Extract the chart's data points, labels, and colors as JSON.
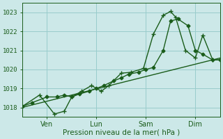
{
  "bg_color": "#cce8e8",
  "grid_color": "#99cccc",
  "line_color": "#1a5c1a",
  "xlim": [
    0,
    4.0
  ],
  "x_ticks": [
    0.5,
    1.5,
    2.5,
    3.5
  ],
  "x_tick_labels": [
    "Ven",
    "Lun",
    "Sam",
    "Dim"
  ],
  "x_vlines": [
    0.5,
    1.5,
    2.5,
    3.5
  ],
  "ylim": [
    1017.5,
    1023.5
  ],
  "yticks": [
    1018,
    1019,
    1020,
    1021,
    1022,
    1023
  ],
  "xlabel": "Pression niveau de la mer( hPa )",
  "series_trend": {
    "x": [
      0.0,
      4.0
    ],
    "y": [
      1018.0,
      1020.6
    ],
    "linewidth": 1.0,
    "linestyle": "-"
  },
  "series1": {
    "x": [
      0.0,
      0.2,
      0.5,
      0.7,
      0.85,
      1.0,
      1.15,
      1.35,
      1.5,
      1.65,
      1.85,
      2.0,
      2.15,
      2.35,
      2.5,
      2.65,
      2.85,
      3.0,
      3.15,
      3.35,
      3.5,
      3.65,
      3.85,
      4.0
    ],
    "y": [
      1018.05,
      1018.25,
      1018.55,
      1018.55,
      1018.65,
      1018.55,
      1018.7,
      1018.85,
      1019.0,
      1019.15,
      1019.4,
      1019.55,
      1019.75,
      1019.85,
      1020.0,
      1020.1,
      1021.0,
      1022.55,
      1022.65,
      1022.3,
      1021.0,
      1020.8,
      1020.5,
      1020.5
    ],
    "marker": "D",
    "markersize": 2.5,
    "linewidth": 1.0
  },
  "series2": {
    "x": [
      0.0,
      0.35,
      0.65,
      0.85,
      1.0,
      1.2,
      1.4,
      1.6,
      1.75,
      2.0,
      2.2,
      2.45,
      2.65,
      2.85,
      3.0,
      3.1,
      3.3,
      3.5,
      3.65,
      3.85,
      4.0
    ],
    "y": [
      1018.05,
      1018.65,
      1017.65,
      1017.8,
      1018.55,
      1018.85,
      1019.15,
      1018.85,
      1019.15,
      1019.8,
      1019.85,
      1020.05,
      1021.85,
      1022.85,
      1023.05,
      1022.75,
      1021.0,
      1020.6,
      1021.8,
      1020.5,
      1020.5
    ],
    "marker": "+",
    "markersize": 4,
    "linewidth": 1.0
  }
}
